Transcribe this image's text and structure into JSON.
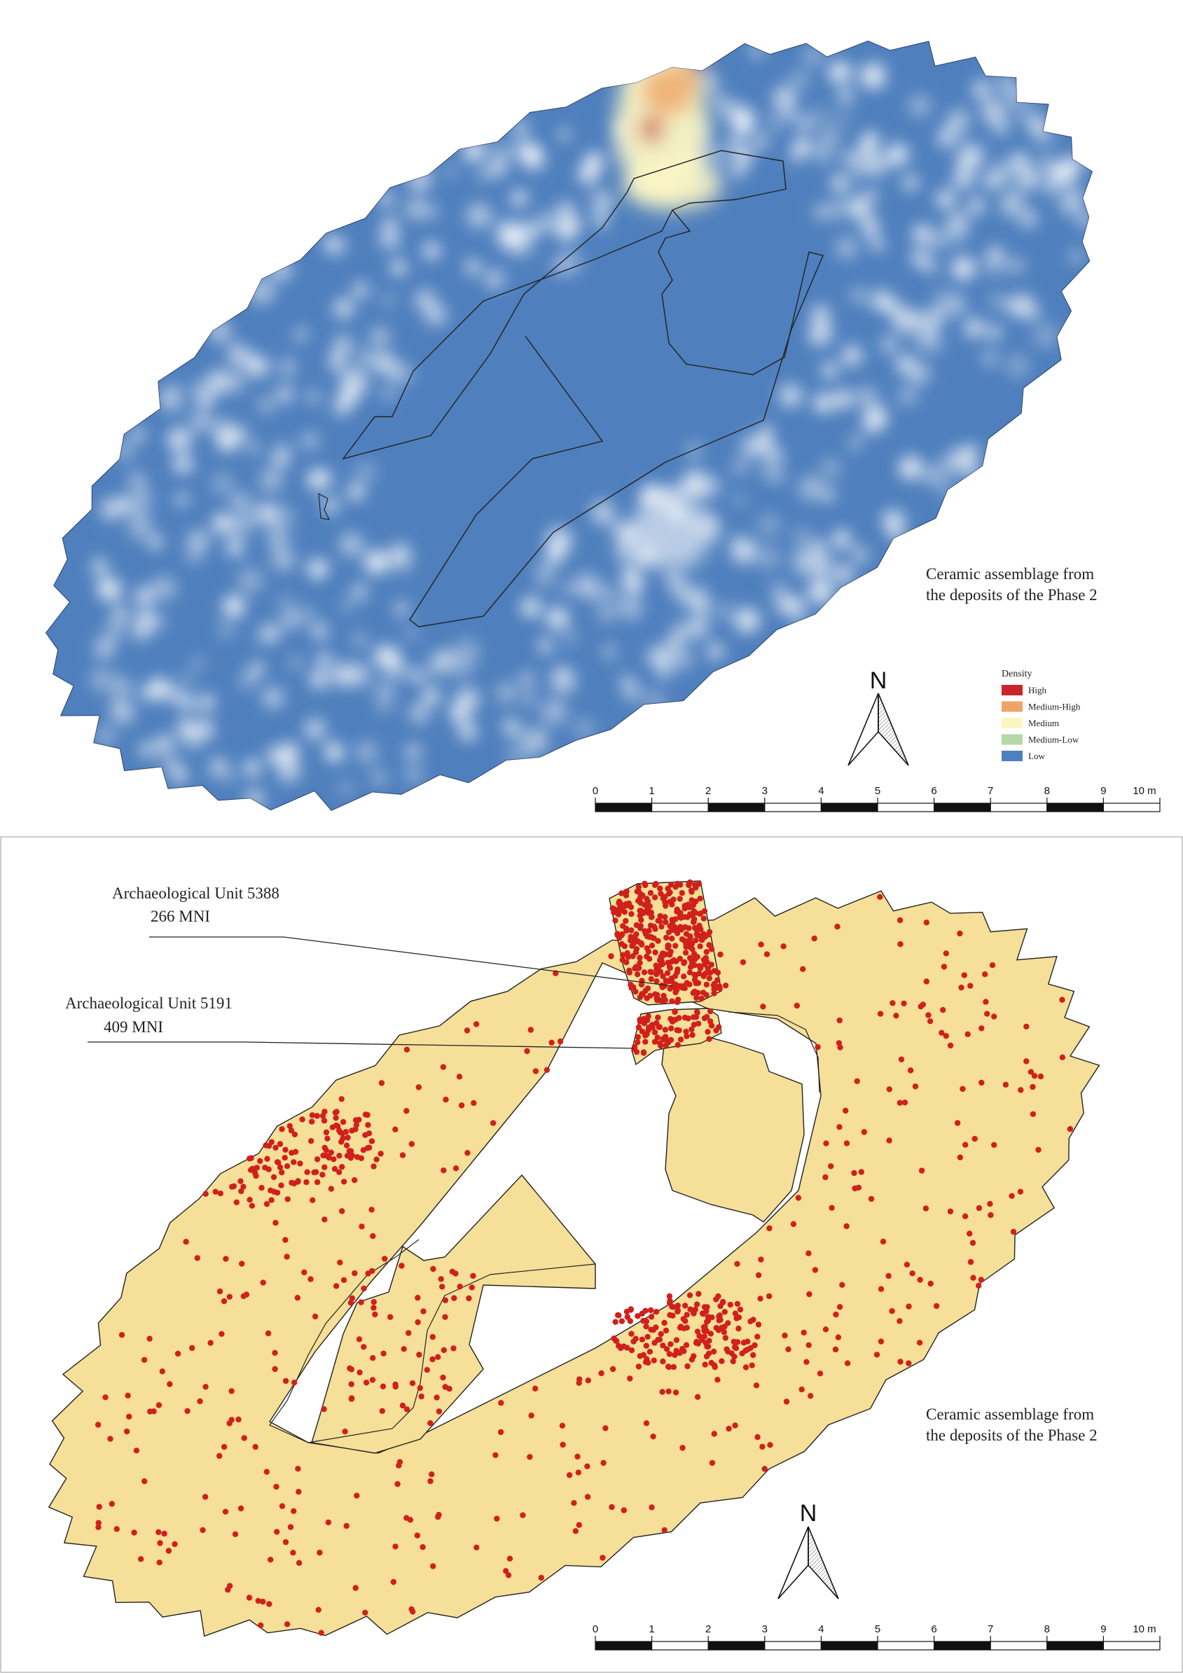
{
  "top_map": {
    "caption_line1": "Ceramic assemblage from",
    "caption_line2": "the deposits of the Phase 2",
    "north_label": "N",
    "legend": {
      "title": "Density",
      "items": [
        {
          "label": "High",
          "color": "#c8262a"
        },
        {
          "label": "Medium-High",
          "color": "#eda567"
        },
        {
          "label": "Medium",
          "color": "#fbf5c4"
        },
        {
          "label": "Medium-Low",
          "color": "#b5d8a7"
        },
        {
          "label": "Low",
          "color": "#4f7fbd"
        }
      ]
    },
    "scale": {
      "ticks": [
        "0",
        "1",
        "2",
        "3",
        "4",
        "5",
        "6",
        "7",
        "8",
        "9",
        "10 m"
      ]
    }
  },
  "bottom_map": {
    "caption_line1": "Ceramic assemblage from",
    "caption_line2": "the deposits of the Phase 2",
    "north_label": "N",
    "units": [
      {
        "name": "Archaeological Unit 5388",
        "mni": "266 MNI"
      },
      {
        "name": "Archaeological Unit 5191",
        "mni": "409 MNI"
      }
    ],
    "scale": {
      "ticks": [
        "0",
        "1",
        "2",
        "3",
        "4",
        "5",
        "6",
        "7",
        "8",
        "9",
        "10 m"
      ]
    }
  },
  "colors": {
    "density_low": "#4f7fbd",
    "deposit_fill": "#f6df98",
    "sherd_point": "#d0201c",
    "outline": "#222222"
  }
}
